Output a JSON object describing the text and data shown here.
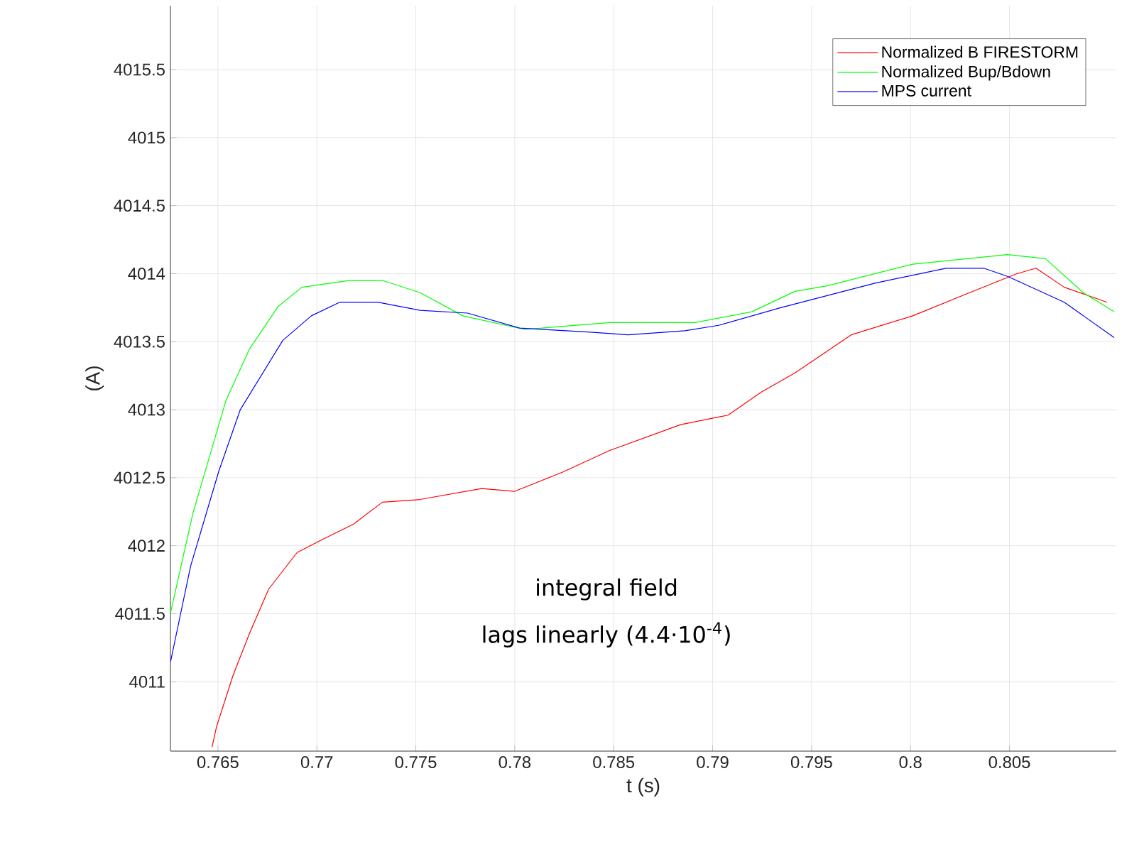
{
  "chart_data": {
    "type": "line",
    "xlabel": "t (s)",
    "ylabel": "(A)",
    "xlim": [
      0.7626,
      0.8104
    ],
    "ylim": [
      4010.49,
      4015.97
    ],
    "xticks": [
      0.765,
      0.77,
      0.775,
      0.78,
      0.785,
      0.79,
      0.795,
      0.8,
      0.805
    ],
    "yticks": [
      4011,
      4011.5,
      4012,
      4012.5,
      4013,
      4013.5,
      4014,
      4014.5,
      4015,
      4015.5
    ],
    "grid": true,
    "legend": "top right",
    "marker": "none",
    "line_style": "solid",
    "annotations": [
      "integral field",
      "lags linearly (4.4·10$^{-4}$)"
    ],
    "series": [
      {
        "name": "Normalized B FIRESTORM",
        "color": "#ff0000",
        "x": [
          0.7647,
          0.76493,
          0.76577,
          0.76661,
          0.76756,
          0.769,
          0.7702,
          0.77187,
          0.77331,
          0.77522,
          0.77833,
          0.78,
          0.7824,
          0.7848,
          0.78838,
          0.79078,
          0.79246,
          0.79416,
          0.797,
          0.80011,
          0.80298,
          0.80538,
          0.80634,
          0.80777,
          0.80993
        ],
        "values": [
          4010.52,
          4010.67,
          4011.05,
          4011.36,
          4011.68,
          4011.95,
          4012.04,
          4012.16,
          4012.32,
          4012.34,
          4012.42,
          4012.4,
          4012.54,
          4012.7,
          4012.89,
          4012.96,
          4013.13,
          4013.27,
          4013.55,
          4013.69,
          4013.86,
          4014.0,
          4014.04,
          4013.9,
          4013.79
        ]
      },
      {
        "name": "Normalized Bup/Bdown",
        "color": "#00ff00",
        "x": [
          0.76261,
          0.76374,
          0.76541,
          0.76661,
          0.76805,
          0.76924,
          0.77163,
          0.77331,
          0.77522,
          0.77738,
          0.78049,
          0.7848,
          0.7891,
          0.79198,
          0.79416,
          0.79578,
          0.80011,
          0.8049,
          0.80682,
          0.80873,
          0.81029
        ],
        "values": [
          4011.51,
          4012.24,
          4013.07,
          4013.45,
          4013.76,
          4013.9,
          4013.95,
          4013.95,
          4013.86,
          4013.69,
          4013.59,
          4013.64,
          4013.64,
          4013.72,
          4013.87,
          4013.91,
          4014.07,
          4014.14,
          4014.11,
          4013.86,
          4013.72
        ]
      },
      {
        "name": "MPS current",
        "color": "#0000ff",
        "x": [
          0.76261,
          0.76362,
          0.76505,
          0.76613,
          0.76828,
          0.76972,
          0.77115,
          0.77307,
          0.77522,
          0.77761,
          0.78025,
          0.78384,
          0.78573,
          0.7886,
          0.7903,
          0.79344,
          0.7982,
          0.80179,
          0.8037,
          0.8049,
          0.80777,
          0.81029
        ],
        "values": [
          4011.15,
          4011.85,
          4012.55,
          4013.0,
          4013.51,
          4013.69,
          4013.79,
          4013.79,
          4013.73,
          4013.71,
          4013.6,
          4013.57,
          4013.55,
          4013.58,
          4013.62,
          4013.75,
          4013.93,
          4014.04,
          4014.04,
          4013.98,
          4013.79,
          4013.53
        ]
      }
    ]
  }
}
